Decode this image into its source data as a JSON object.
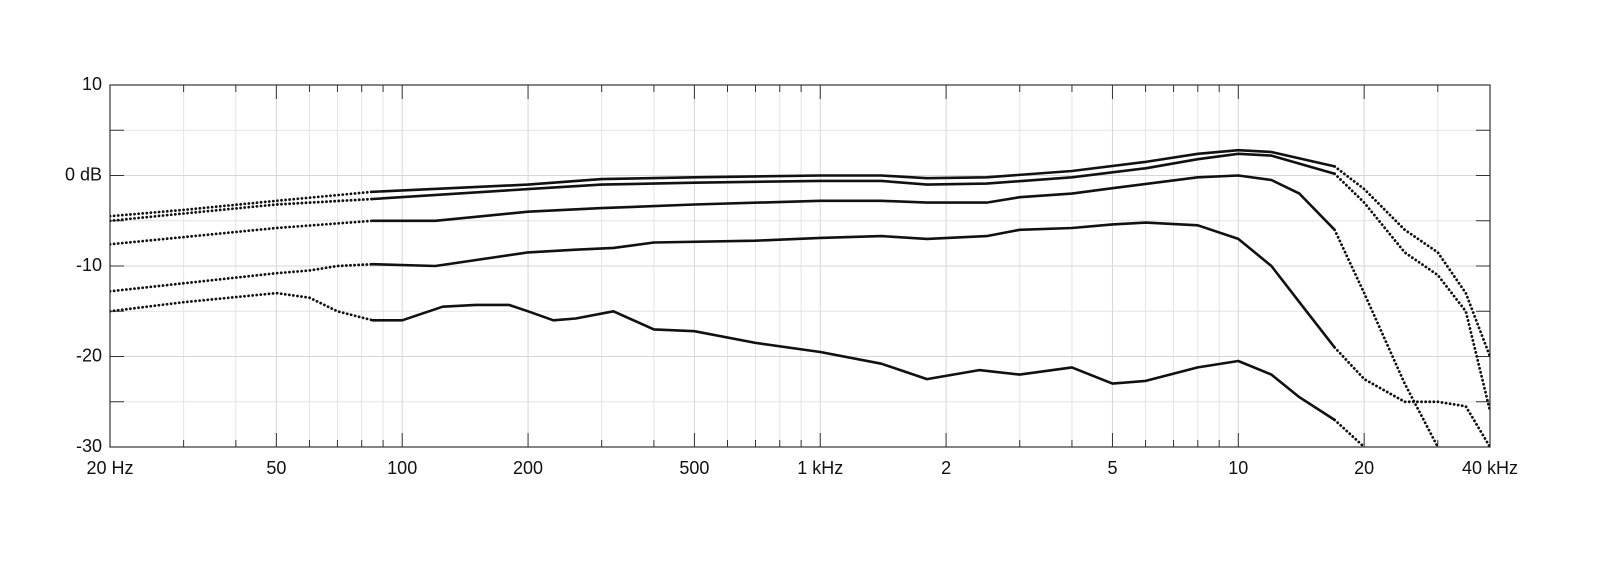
{
  "chart_data": {
    "type": "line",
    "log_x": true,
    "grid": true,
    "color": "#111111",
    "xlim": [
      20,
      40000
    ],
    "ylim": [
      -30,
      10
    ],
    "xticks": [
      {
        "value": 20,
        "label": "20 Hz"
      },
      50,
      100,
      200,
      500,
      {
        "value": 1000,
        "label": "1 kHz"
      },
      {
        "value": 2000,
        "label": "2"
      },
      {
        "value": 5000,
        "label": "5"
      },
      {
        "value": 10000,
        "label": "10"
      },
      {
        "value": 20000,
        "label": "20"
      },
      {
        "value": 40000,
        "label": "40 kHz"
      }
    ],
    "minor_xticks": [
      30,
      40,
      60,
      70,
      80,
      90,
      300,
      400,
      600,
      700,
      800,
      900,
      3000,
      4000,
      6000,
      7000,
      8000,
      9000,
      30000
    ],
    "yticks": [
      10,
      {
        "value": 0,
        "label": "0 dB"
      },
      -10,
      -20,
      -30
    ],
    "minor_yticks": [
      5,
      -5,
      -15,
      -25
    ],
    "series": [
      {
        "style": "dotted",
        "x": [
          20,
          30,
          50,
          85,
          null,
          17000,
          20000,
          25000,
          30000,
          35000,
          40000
        ],
        "values": [
          -4.5,
          -3.8,
          -2.8,
          -1.8,
          null,
          1.0,
          -1.5,
          -6,
          -8.5,
          -13,
          -20
        ]
      },
      {
        "style": "solid",
        "x": [
          85,
          200,
          300,
          500,
          1000,
          1400,
          1800,
          2500,
          4000,
          6000,
          8000,
          10000,
          12000,
          17000
        ],
        "values": [
          -1.8,
          -1.0,
          -0.4,
          -0.2,
          0,
          0,
          -0.3,
          -0.2,
          0.5,
          1.5,
          2.4,
          2.8,
          2.6,
          1.0
        ]
      },
      {
        "style": "dotted",
        "x": [
          20,
          30,
          50,
          85,
          null,
          17000,
          20000,
          25000,
          30000,
          35000,
          40000
        ],
        "values": [
          -5,
          -4.2,
          -3.2,
          -2.6,
          null,
          0.2,
          -3,
          -8.5,
          -11,
          -15,
          -26
        ]
      },
      {
        "style": "solid",
        "x": [
          85,
          200,
          300,
          500,
          1000,
          1400,
          1800,
          2500,
          4000,
          6000,
          8000,
          10000,
          12000,
          17000
        ],
        "values": [
          -2.6,
          -1.5,
          -1.0,
          -0.8,
          -0.6,
          -0.6,
          -1.0,
          -0.9,
          -0.2,
          0.8,
          1.8,
          2.4,
          2.2,
          0.2
        ]
      },
      {
        "style": "dotted",
        "x": [
          20,
          50,
          85,
          null,
          17000,
          20000,
          25000,
          30000
        ],
        "values": [
          -7.6,
          -5.8,
          -5.0,
          null,
          -6,
          -13,
          -23,
          -30
        ]
      },
      {
        "style": "solid",
        "x": [
          85,
          120,
          200,
          300,
          500,
          1000,
          1400,
          1800,
          2500,
          3000,
          4000,
          5000,
          8000,
          10000,
          12000,
          14000,
          17000
        ],
        "values": [
          -5.0,
          -5.0,
          -4.0,
          -3.6,
          -3.2,
          -2.8,
          -2.8,
          -3.0,
          -3.0,
          -2.4,
          -2.0,
          -1.4,
          -0.2,
          0,
          -0.5,
          -2,
          -6
        ]
      },
      {
        "style": "dotted",
        "x": [
          20,
          50,
          60,
          70,
          85,
          null,
          17000,
          20000,
          25000,
          30000,
          35000,
          40000
        ],
        "values": [
          -12.8,
          -10.8,
          -10.5,
          -10,
          -9.8,
          null,
          -19,
          -22.5,
          -25,
          -25,
          -25.5,
          -30
        ]
      },
      {
        "style": "solid",
        "x": [
          85,
          120,
          200,
          260,
          320,
          400,
          700,
          1000,
          1400,
          1800,
          2500,
          3000,
          4000,
          5000,
          6000,
          8000,
          10000,
          12000,
          14000,
          17000
        ],
        "values": [
          -9.8,
          -10,
          -8.5,
          -8.2,
          -8,
          -7.4,
          -7.2,
          -6.9,
          -6.7,
          -7,
          -6.7,
          -6,
          -5.8,
          -5.4,
          -5.2,
          -5.5,
          -7,
          -10,
          -14,
          -19
        ]
      },
      {
        "style": "dotted",
        "x": [
          20,
          30,
          50,
          60,
          70,
          85,
          null,
          17000,
          20000
        ],
        "values": [
          -15,
          -14,
          -13,
          -13.5,
          -15,
          -16,
          null,
          -27,
          -30
        ]
      },
      {
        "style": "solid",
        "x": [
          85,
          100,
          125,
          150,
          180,
          200,
          230,
          260,
          320,
          400,
          500,
          700,
          1000,
          1400,
          1800,
          2400,
          3000,
          4000,
          5000,
          6000,
          8000,
          10000,
          12000,
          14000,
          17000
        ],
        "values": [
          -16,
          -16,
          -14.5,
          -14.3,
          -14.3,
          -15,
          -16,
          -15.8,
          -15,
          -17,
          -17.2,
          -18.5,
          -19.5,
          -20.8,
          -22.5,
          -21.5,
          -22,
          -21.2,
          -23,
          -22.7,
          -21.2,
          -20.5,
          -22,
          -24.5,
          -27
        ]
      }
    ]
  }
}
